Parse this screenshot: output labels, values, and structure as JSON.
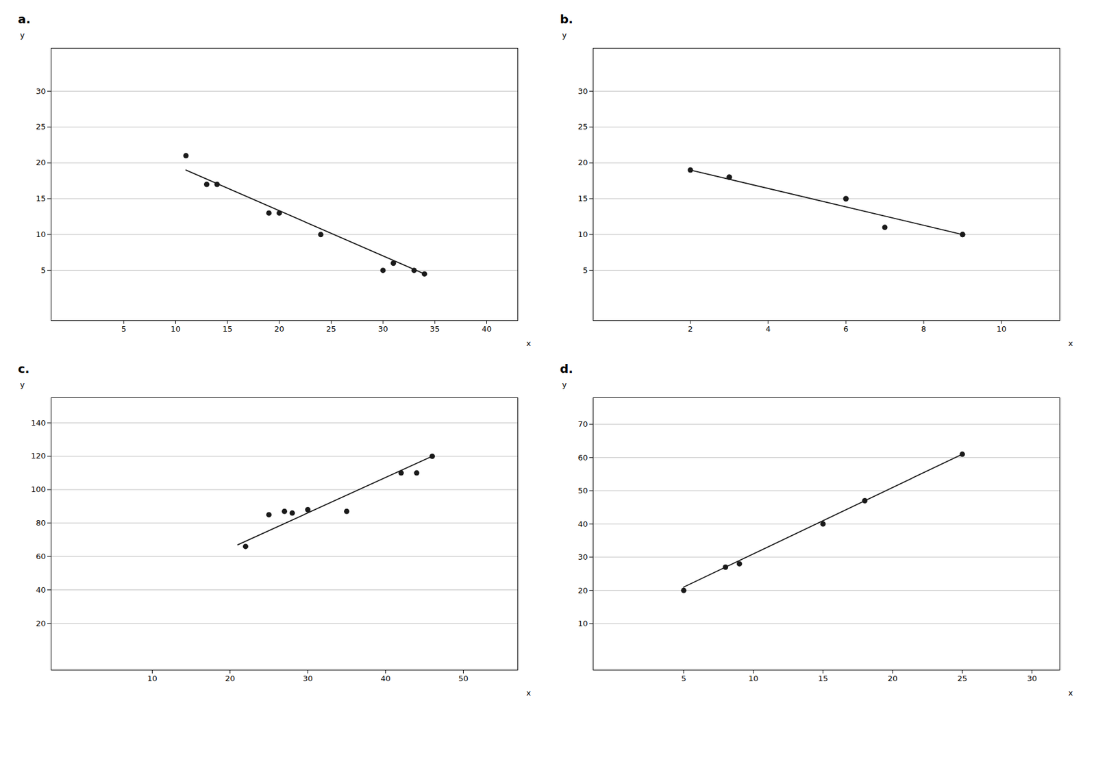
{
  "chart_data": [
    {
      "type": "scatter",
      "title": "a.",
      "xlabel": "x",
      "ylabel": "y",
      "xlim": [
        -2,
        43
      ],
      "ylim": [
        -2,
        36
      ],
      "xticks": [
        5,
        10,
        15,
        20,
        25,
        30,
        35,
        40
      ],
      "yticks": [
        5,
        10,
        15,
        20,
        25,
        30
      ],
      "grid": "y",
      "series": [
        {
          "type": "scatter",
          "color": "#1a1a1a",
          "x": [
            11,
            13,
            14,
            19,
            20,
            24,
            30,
            31,
            33,
            34
          ],
          "values": [
            21,
            17,
            17,
            13,
            13,
            10,
            5,
            6,
            5,
            4.5
          ]
        },
        {
          "type": "line",
          "color": "#1a1a1a",
          "x": [
            11,
            34
          ],
          "values": [
            19,
            4.5
          ]
        }
      ]
    },
    {
      "type": "scatter",
      "title": "b.",
      "xlabel": "x",
      "ylabel": "y",
      "xlim": [
        -0.5,
        11.5
      ],
      "ylim": [
        -2,
        36
      ],
      "xticks": [
        2,
        4,
        6,
        8,
        10
      ],
      "yticks": [
        5,
        10,
        15,
        20,
        25,
        30
      ],
      "grid": "y",
      "series": [
        {
          "type": "scatter",
          "color": "#1a1a1a",
          "x": [
            2,
            3,
            3,
            6,
            6,
            7,
            9,
            9
          ],
          "values": [
            19,
            18,
            18,
            15,
            15,
            11,
            10,
            10
          ]
        },
        {
          "type": "line",
          "color": "#1a1a1a",
          "x": [
            2,
            9
          ],
          "values": [
            19,
            10
          ]
        }
      ]
    },
    {
      "type": "scatter",
      "title": "c.",
      "xlabel": "x",
      "ylabel": "y",
      "xlim": [
        -3,
        57
      ],
      "ylim": [
        -8,
        155
      ],
      "xticks": [
        10,
        20,
        30,
        40,
        50
      ],
      "yticks": [
        20,
        40,
        60,
        80,
        100,
        120,
        140
      ],
      "grid": "y",
      "series": [
        {
          "type": "scatter",
          "color": "#1a1a1a",
          "x": [
            22,
            25,
            27,
            28,
            30,
            35,
            42,
            44,
            46
          ],
          "values": [
            66,
            85,
            87,
            86,
            88,
            87,
            110,
            110,
            120
          ]
        },
        {
          "type": "line",
          "color": "#1a1a1a",
          "x": [
            21,
            46
          ],
          "values": [
            67,
            120
          ]
        }
      ]
    },
    {
      "type": "scatter",
      "title": "d.",
      "xlabel": "x",
      "ylabel": "y",
      "xlim": [
        -1.5,
        32
      ],
      "ylim": [
        -4,
        78
      ],
      "xticks": [
        5,
        10,
        15,
        20,
        25,
        30
      ],
      "yticks": [
        10,
        20,
        30,
        40,
        50,
        60,
        70
      ],
      "grid": "y",
      "series": [
        {
          "type": "scatter",
          "color": "#1a1a1a",
          "x": [
            5,
            8,
            9,
            15,
            18,
            25
          ],
          "values": [
            20,
            27,
            28,
            40,
            47,
            61
          ]
        },
        {
          "type": "line",
          "color": "#1a1a1a",
          "x": [
            5,
            25
          ],
          "values": [
            21,
            61
          ]
        }
      ]
    }
  ]
}
